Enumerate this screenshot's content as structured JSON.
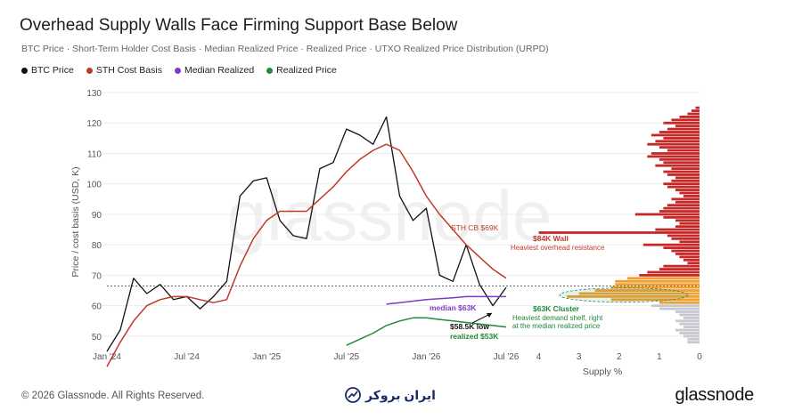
{
  "title": "Overhead Supply Walls Face Firming Support Base Below",
  "subtitle": "BTC Price · Short-Term Holder Cost Basis · Median Realized Price · Realized Price · UTXO Realized Price Distribution (URPD)",
  "legend": [
    {
      "label": "BTC Price",
      "color": "#111111"
    },
    {
      "label": "STH Cost Basis",
      "color": "#c0392b"
    },
    {
      "label": "Median Realized",
      "color": "#7d3cc8"
    },
    {
      "label": "Realized Price",
      "color": "#1e8a3a"
    }
  ],
  "footer": {
    "copyright": "© 2026 Glassnode. All Rights Reserved.",
    "brand": "glassnode",
    "watermark_text": "ایران بروکر",
    "background_watermark": "glassnode"
  },
  "chart_data": [
    {
      "type": "line",
      "ylabel": "Price / cost basis (USD, K)",
      "ylim": [
        45,
        130
      ],
      "yticks": [
        50,
        60,
        70,
        80,
        90,
        100,
        110,
        120,
        130
      ],
      "xticks": [
        "Jan '24",
        "Jul '24",
        "Jan '25",
        "Jul '25",
        "Jan '26",
        "Jul '26"
      ],
      "xlim": [
        "2024-01",
        "2026-07"
      ],
      "reference_line": {
        "value": 66.5,
        "style": "dashed"
      },
      "series": [
        {
          "name": "BTC Price",
          "color": "#111111",
          "x": [
            "2024-01",
            "2024-02",
            "2024-03",
            "2024-04",
            "2024-05",
            "2024-06",
            "2024-07",
            "2024-08",
            "2024-09",
            "2024-10",
            "2024-11",
            "2024-12",
            "2025-01",
            "2025-02",
            "2025-03",
            "2025-04",
            "2025-05",
            "2025-06",
            "2025-07",
            "2025-08",
            "2025-09",
            "2025-10",
            "2025-11",
            "2025-12",
            "2026-01",
            "2026-02",
            "2026-03",
            "2026-04",
            "2026-05",
            "2026-06",
            "2026-07"
          ],
          "values": [
            45,
            52,
            69,
            64,
            67,
            62,
            63,
            59,
            63,
            68,
            96,
            101,
            102,
            88,
            83,
            82,
            105,
            107,
            118,
            116,
            113,
            122,
            96,
            88,
            92,
            70,
            68,
            80,
            67,
            60,
            66
          ]
        },
        {
          "name": "STH Cost Basis",
          "color": "#c0392b",
          "x": [
            "2024-01",
            "2024-02",
            "2024-03",
            "2024-04",
            "2024-05",
            "2024-06",
            "2024-07",
            "2024-08",
            "2024-09",
            "2024-10",
            "2024-11",
            "2024-12",
            "2025-01",
            "2025-02",
            "2025-03",
            "2025-04",
            "2025-05",
            "2025-06",
            "2025-07",
            "2025-08",
            "2025-09",
            "2025-10",
            "2025-11",
            "2025-12",
            "2026-01",
            "2026-02",
            "2026-03",
            "2026-04",
            "2026-05",
            "2026-06",
            "2026-07"
          ],
          "values": [
            40,
            48,
            55,
            60,
            62,
            63,
            63,
            62,
            61,
            62,
            73,
            82,
            88,
            91,
            91,
            91,
            95,
            99,
            104,
            108,
            111,
            113,
            111,
            104,
            96,
            90,
            85,
            80,
            76,
            72,
            69
          ]
        },
        {
          "name": "Median Realized",
          "color": "#7d3cc8",
          "x": [
            "2025-10",
            "2025-11",
            "2025-12",
            "2026-01",
            "2026-02",
            "2026-03",
            "2026-04",
            "2026-05",
            "2026-06",
            "2026-07"
          ],
          "values": [
            60.5,
            61,
            61.5,
            62,
            62.3,
            62.6,
            63,
            63,
            63,
            63
          ]
        },
        {
          "name": "Realized Price",
          "color": "#1e8a3a",
          "x": [
            "2025-07",
            "2025-08",
            "2025-09",
            "2025-10",
            "2025-11",
            "2025-12",
            "2026-01",
            "2026-02",
            "2026-03",
            "2026-04",
            "2026-05",
            "2026-06",
            "2026-07"
          ],
          "values": [
            47,
            49,
            51,
            53.5,
            55,
            56,
            56,
            55.5,
            55,
            54.5,
            54,
            53.5,
            53
          ]
        }
      ],
      "annotations": [
        {
          "text": "STH CB $69K",
          "color": "#c0392b"
        },
        {
          "text": "median $63K",
          "color": "#7d3cc8"
        },
        {
          "text": "$58.5K low",
          "color": "#111111"
        },
        {
          "text": "realized $53K",
          "color": "#1e8a3a"
        }
      ]
    },
    {
      "type": "bar",
      "orientation": "horizontal",
      "xlabel": "Supply %",
      "xticks": [
        4,
        3,
        2,
        1,
        0
      ],
      "xlim": [
        4.5,
        0
      ],
      "price_levels": [
        125,
        124,
        123,
        122,
        121,
        120,
        119,
        118,
        117,
        116,
        115,
        114,
        113,
        112,
        111,
        110,
        109,
        108,
        107,
        106,
        105,
        104,
        103,
        102,
        101,
        100,
        99,
        98,
        97,
        96,
        95,
        94,
        93,
        92,
        91,
        90,
        89,
        88,
        87,
        86,
        85,
        84,
        83,
        82,
        81,
        80,
        79,
        78,
        77,
        76,
        75,
        74,
        73,
        72,
        71,
        70,
        69,
        68,
        67,
        66,
        65,
        64,
        63,
        62,
        61,
        60,
        59,
        58,
        57,
        56,
        55,
        54,
        53,
        52,
        51,
        50,
        49,
        48
      ],
      "supply_pct": [
        0.1,
        0.2,
        0.3,
        0.5,
        0.7,
        0.9,
        0.6,
        0.8,
        1.0,
        1.2,
        0.9,
        1.1,
        1.3,
        1.0,
        0.8,
        1.2,
        1.3,
        1.0,
        0.9,
        1.1,
        0.7,
        0.9,
        0.8,
        0.6,
        0.7,
        0.9,
        0.8,
        0.6,
        0.5,
        0.4,
        0.7,
        0.6,
        0.8,
        0.9,
        1.0,
        1.6,
        0.9,
        0.6,
        0.5,
        0.6,
        1.1,
        4.0,
        0.8,
        0.7,
        0.5,
        1.4,
        0.9,
        0.7,
        0.6,
        0.5,
        0.4,
        0.3,
        0.9,
        1.0,
        1.3,
        1.5,
        1.8,
        2.1,
        2.1,
        2.2,
        2.6,
        3.0,
        3.3,
        2.2,
        1.0,
        1.2,
        1.0,
        0.6,
        0.5,
        0.4,
        0.6,
        0.5,
        0.4,
        0.6,
        0.5,
        0.4,
        0.3,
        0.3
      ],
      "colors": {
        "above_price": "#c62828",
        "near_price": "#f0a030",
        "below_price": "#c8c8d0",
        "cluster": "#f0a030"
      },
      "annotations": [
        {
          "title": "$84K Wall",
          "text": "Heaviest overhead resistance",
          "color": "#c0392b"
        },
        {
          "title": "$63K Cluster",
          "text": "Heaviest demand shelf, right at the median realized price",
          "color": "#1e8a3a"
        }
      ]
    }
  ]
}
